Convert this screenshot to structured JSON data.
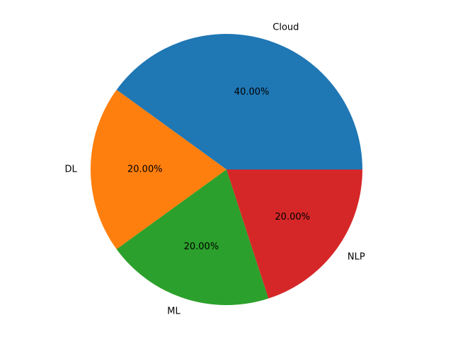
{
  "chart_data": {
    "type": "pie",
    "title": "",
    "slices": [
      {
        "label": "Cloud",
        "value": 40,
        "pct_label": "40.00%",
        "color": "#1f77b4"
      },
      {
        "label": "DL",
        "value": 20,
        "pct_label": "20.00%",
        "color": "#ff7f0e"
      },
      {
        "label": "ML",
        "value": 20,
        "pct_label": "20.00%",
        "color": "#2ca02c"
      },
      {
        "label": "NLP",
        "value": 20,
        "pct_label": "20.00%",
        "color": "#d62728"
      }
    ],
    "start_angle_deg": 0,
    "direction": "counterclockwise",
    "legend": "none"
  }
}
